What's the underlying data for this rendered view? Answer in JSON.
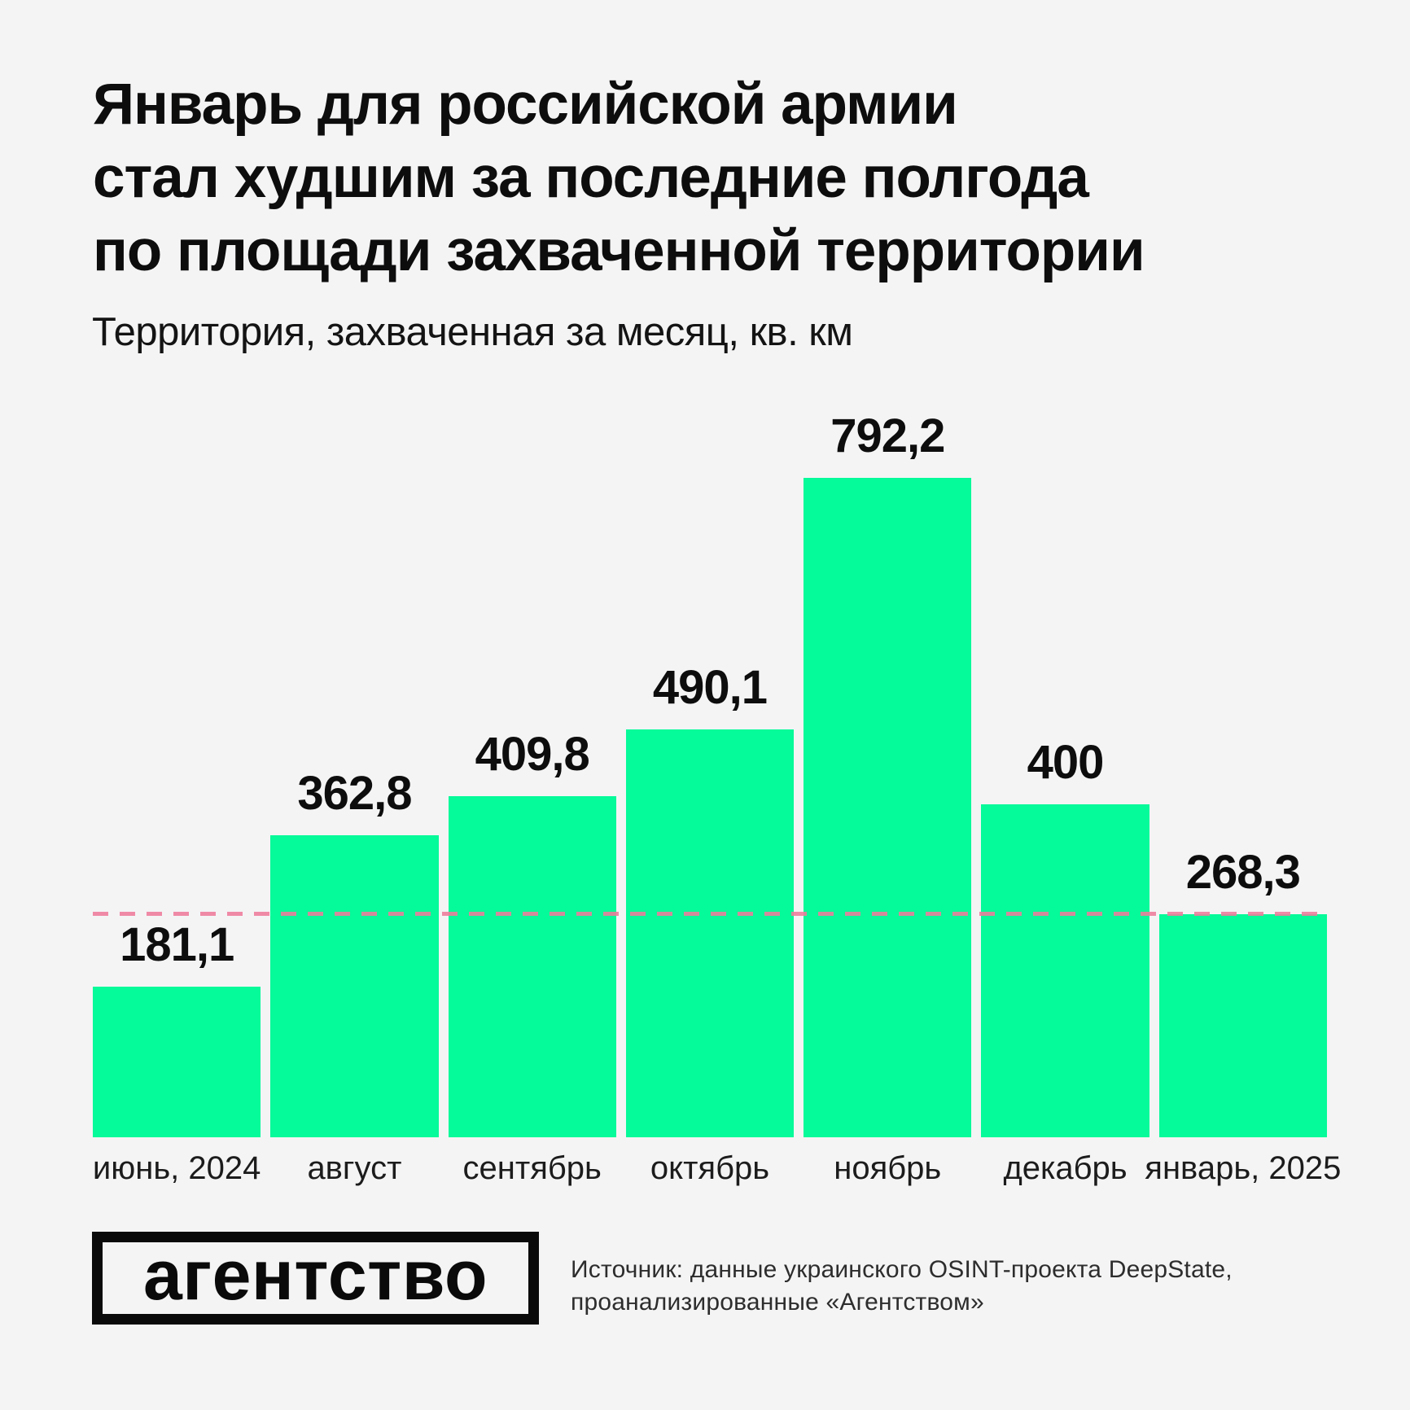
{
  "page": {
    "background": "#f4f4f5"
  },
  "header": {
    "title_lines": [
      "Январь для российской армии",
      "стал худшим за последние полгода",
      "по площади захваченной территории"
    ],
    "subtitle": "Территория, захваченная за месяц, кв. км"
  },
  "chart_data": {
    "type": "bar",
    "title": "Январь для российской армии стал худшим за последние полгода по площади захваченной территории",
    "ylabel": "Территория, захваченная за месяц, кв. км",
    "categories": [
      "июнь, 2024",
      "август",
      "сентябрь",
      "октябрь",
      "ноябрь",
      "декабрь",
      "январь, 2025"
    ],
    "values": [
      181.1,
      362.8,
      409.8,
      490.1,
      792.2,
      400,
      268.3
    ],
    "value_labels": [
      "181,1",
      "362,8",
      "409,8",
      "490,1",
      "792,2",
      "400",
      "268,3"
    ],
    "bar_color": "#05fa99",
    "grid": false,
    "legend": "none",
    "ylim": [
      0,
      800
    ],
    "reference_line": {
      "value": 268.3,
      "style": "dashed",
      "color": "#ee7c9b"
    }
  },
  "footer": {
    "logo_text": "агентство",
    "source_lines": [
      "Источник: данные украинского OSINT-проекта DeepState,",
      "проанализированные «Агентством»"
    ]
  }
}
